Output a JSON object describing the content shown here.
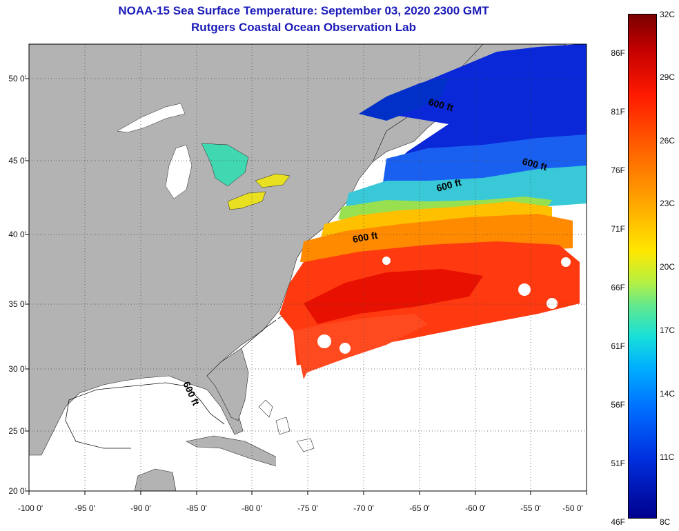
{
  "title_line1": "NOAA-15 Sea Surface Temperature:  September 03, 2020 2300 GMT",
  "title_line2": "Rutgers Coastal Ocean Observation Lab",
  "y_axis_labels": [
    "50 0'",
    "45 0'",
    "40 0'",
    "35 0'",
    "30 0'",
    "25 0'",
    "20 0'"
  ],
  "x_axis_labels": [
    "-100 0'",
    "-95 0'",
    "-90 0'",
    "-85 0'",
    "-80 0'",
    "-75 0'",
    "-70 0'",
    "-65 0'",
    "-60 0'",
    "-55 0'",
    "-50 0'"
  ],
  "contour_labels": [
    "600 ft",
    "600 ft",
    "600 ft",
    "600 ft",
    "600 ft"
  ],
  "colorbar": {
    "fahrenheit": [
      "86F",
      "81F",
      "76F",
      "71F",
      "66F",
      "61F",
      "56F",
      "51F",
      "46F"
    ],
    "celsius": [
      "32C",
      "29C",
      "26C",
      "23C",
      "20C",
      "17C",
      "14C",
      "11C",
      "8C"
    ],
    "min_c": 8,
    "max_c": 32
  },
  "colors": {
    "land": "#b3b3b3",
    "title": "#1a1ab8",
    "no_data": "#ffffff"
  }
}
